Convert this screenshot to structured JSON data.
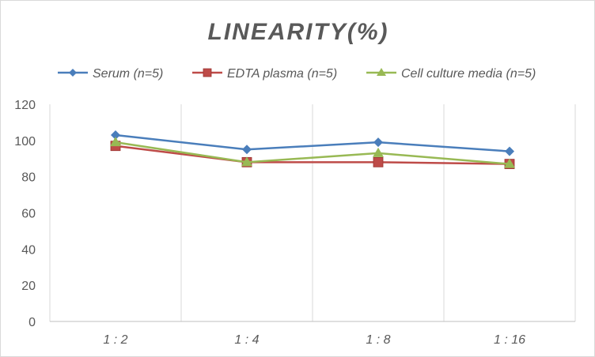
{
  "chart_data": {
    "type": "line",
    "title": "LINEARITY(%)",
    "xlabel": "",
    "ylabel": "",
    "categories": [
      "1:2",
      "1:4",
      "1:8",
      "1:16"
    ],
    "ylim": [
      0,
      120
    ],
    "yticks": [
      0,
      20,
      40,
      60,
      80,
      100,
      120
    ],
    "grid": "vertical",
    "legend": "top",
    "series": [
      {
        "name": "Serum (n=5)",
        "values": [
          103,
          95,
          99,
          94
        ],
        "color": "#4a7ebb",
        "marker": "diamond"
      },
      {
        "name": "EDTA plasma (n=5)",
        "values": [
          97,
          88,
          88,
          87
        ],
        "color": "#be4b48",
        "marker": "square"
      },
      {
        "name": "Cell culture media (n=5)",
        "values": [
          99,
          88,
          93,
          87
        ],
        "color": "#98b954",
        "marker": "triangle"
      }
    ]
  }
}
